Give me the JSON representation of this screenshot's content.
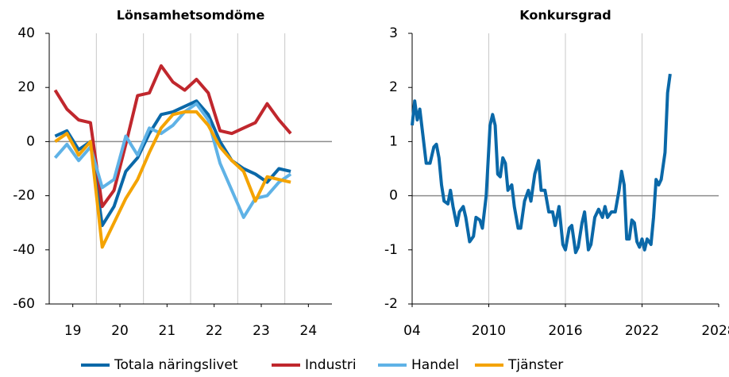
{
  "chart_data": [
    {
      "type": "line",
      "title": "Lönsamhetsomdöme",
      "x": [
        2019.125,
        2019.375,
        2019.625,
        2019.875,
        2020.125,
        2020.375,
        2020.625,
        2020.875,
        2021.125,
        2021.375,
        2021.625,
        2021.875,
        2022.125,
        2022.375,
        2022.625,
        2022.875,
        2023.125,
        2023.375,
        2023.625,
        2023.875,
        2024.125
      ],
      "xlim": [
        2019,
        2025
      ],
      "xticks": [
        {
          "value": 2019.5,
          "label": "19"
        },
        {
          "value": 2020.5,
          "label": "20"
        },
        {
          "value": 2021.5,
          "label": "21"
        },
        {
          "value": 2022.5,
          "label": "22"
        },
        {
          "value": 2023.5,
          "label": "23"
        },
        {
          "value": 2024.5,
          "label": "24"
        }
      ],
      "xgrid": [
        2020,
        2021,
        2022,
        2023,
        2024
      ],
      "ylim": [
        -60,
        40
      ],
      "yticks": [
        -60,
        -40,
        -20,
        0,
        20,
        40
      ],
      "hline": 0,
      "legend": "bottom",
      "series": [
        {
          "name": "Totala näringslivet",
          "color": "#0a68a8",
          "values": [
            2,
            4,
            -3,
            0,
            -31,
            -24,
            -11,
            -6,
            3,
            10,
            11,
            13,
            15,
            10,
            0,
            -7,
            -10,
            -12,
            -15,
            -10,
            -11
          ]
        },
        {
          "name": "Industri",
          "color": "#c0272d",
          "values": [
            19,
            12,
            8,
            7,
            -24,
            -18,
            -1,
            17,
            18,
            28,
            22,
            19,
            23,
            18,
            4,
            3,
            5,
            7,
            14,
            8,
            3
          ]
        },
        {
          "name": "Handel",
          "color": "#5fb2e6",
          "values": [
            -6,
            -1,
            -7,
            -2,
            -17,
            -14,
            2,
            -5,
            5,
            3,
            6,
            11,
            14,
            8,
            -8,
            -18,
            -28,
            -21,
            -20,
            -15,
            -12
          ]
        },
        {
          "name": "Tjänster",
          "color": "#f4a300",
          "values": [
            0,
            3,
            -5,
            0,
            -39,
            -30,
            -21,
            -14,
            -4,
            5,
            10,
            11,
            11,
            6,
            -2,
            -7,
            -11,
            -22,
            -13,
            -14,
            -15
          ]
        }
      ]
    },
    {
      "type": "line",
      "title": "Konkursgrad",
      "x": [
        2004.0,
        2004.2,
        2004.4,
        2004.6,
        2004.9,
        2005.1,
        2005.4,
        2005.7,
        2005.9,
        2006.1,
        2006.3,
        2006.5,
        2006.8,
        2007.0,
        2007.2,
        2007.5,
        2007.7,
        2008.0,
        2008.2,
        2008.5,
        2008.8,
        2009.0,
        2009.3,
        2009.5,
        2009.8,
        2010.1,
        2010.3,
        2010.5,
        2010.7,
        2010.9,
        2011.1,
        2011.3,
        2011.5,
        2011.8,
        2012.0,
        2012.3,
        2012.5,
        2012.8,
        2013.1,
        2013.3,
        2013.6,
        2013.9,
        2014.1,
        2014.4,
        2014.7,
        2015.0,
        2015.2,
        2015.5,
        2015.8,
        2016.0,
        2016.3,
        2016.5,
        2016.8,
        2017.0,
        2017.3,
        2017.5,
        2017.8,
        2018.0,
        2018.3,
        2018.6,
        2018.9,
        2019.1,
        2019.3,
        2019.6,
        2019.9,
        2020.2,
        2020.4,
        2020.6,
        2020.8,
        2021.0,
        2021.2,
        2021.4,
        2021.6,
        2021.8,
        2022.0,
        2022.2,
        2022.4,
        2022.7,
        2022.9,
        2023.1,
        2023.3,
        2023.5,
        2023.8,
        2024.0,
        2024.2
      ],
      "xlim": [
        2004,
        2028
      ],
      "xticks": [
        {
          "value": 2004,
          "label": "04"
        },
        2010,
        2016,
        2022,
        2028
      ],
      "xgrid": [
        2010,
        2016,
        2022
      ],
      "ylim": [
        -2,
        3
      ],
      "yticks": [
        -2,
        -1,
        0,
        1,
        2,
        3
      ],
      "hline": 0,
      "series": [
        {
          "color": "#0a68a8",
          "values": [
            1.3,
            1.75,
            1.4,
            1.6,
            1.0,
            0.6,
            0.6,
            0.9,
            0.95,
            0.7,
            0.2,
            -0.1,
            -0.15,
            0.1,
            -0.2,
            -0.55,
            -0.3,
            -0.2,
            -0.4,
            -0.85,
            -0.75,
            -0.4,
            -0.45,
            -0.6,
            0.0,
            1.3,
            1.5,
            1.3,
            0.4,
            0.35,
            0.7,
            0.6,
            0.1,
            0.2,
            -0.2,
            -0.6,
            -0.6,
            -0.1,
            0.1,
            -0.1,
            0.4,
            0.65,
            0.1,
            0.1,
            -0.3,
            -0.3,
            -0.55,
            -0.2,
            -0.9,
            -1.0,
            -0.6,
            -0.55,
            -1.05,
            -0.95,
            -0.5,
            -0.3,
            -1.0,
            -0.9,
            -0.4,
            -0.25,
            -0.4,
            -0.2,
            -0.4,
            -0.3,
            -0.3,
            0.1,
            0.45,
            0.2,
            -0.8,
            -0.8,
            -0.45,
            -0.5,
            -0.85,
            -0.95,
            -0.8,
            -1.0,
            -0.8,
            -0.9,
            -0.4,
            0.3,
            0.2,
            0.3,
            0.8,
            1.9,
            2.25
          ]
        }
      ]
    }
  ]
}
